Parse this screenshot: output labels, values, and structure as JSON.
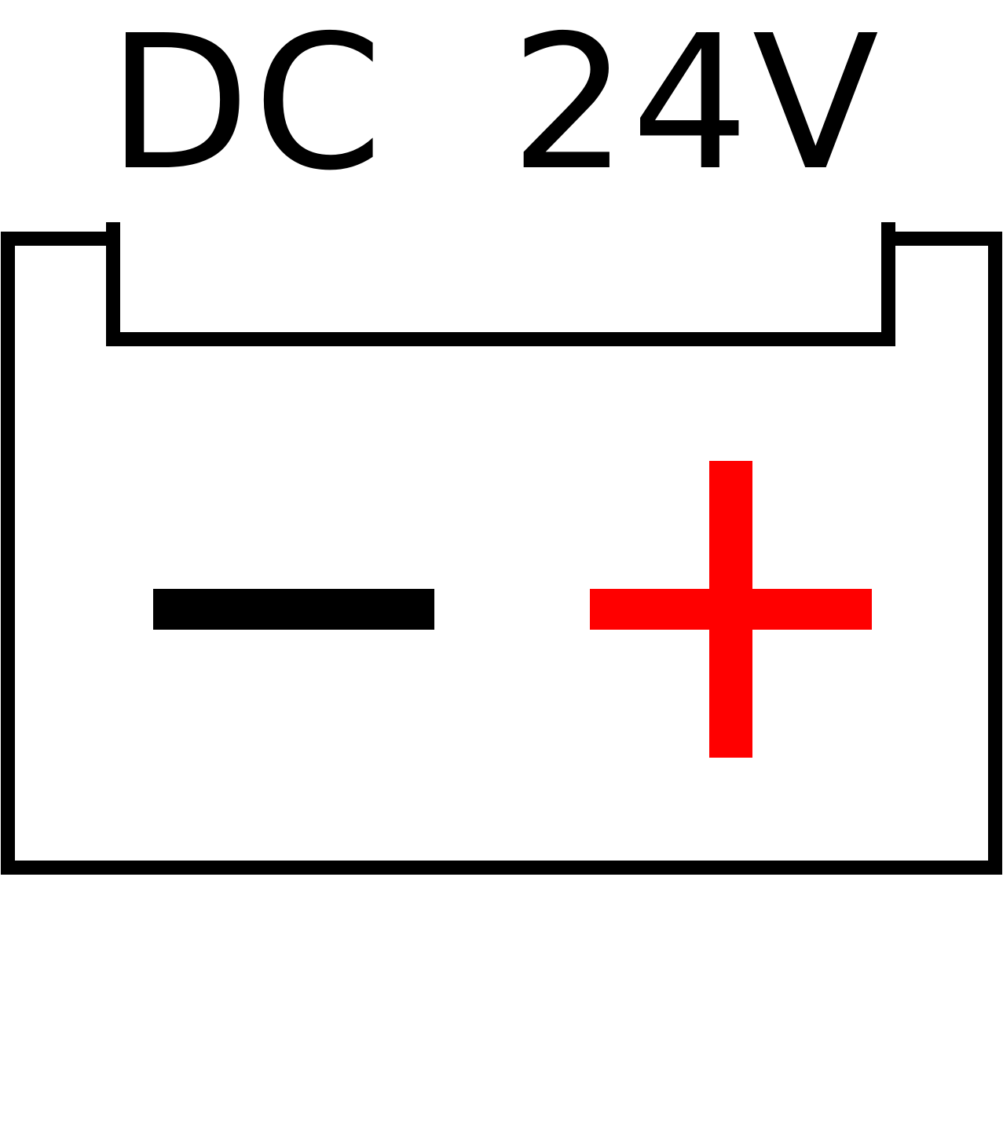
{
  "label": {
    "text": "DC  24V"
  },
  "colors": {
    "background": "#ffffff",
    "outline": "#000000",
    "negative": "#000000",
    "positive": "#ff0000"
  },
  "icons": {
    "battery": "battery-icon",
    "negative": "minus-icon",
    "positive": "plus-icon"
  }
}
